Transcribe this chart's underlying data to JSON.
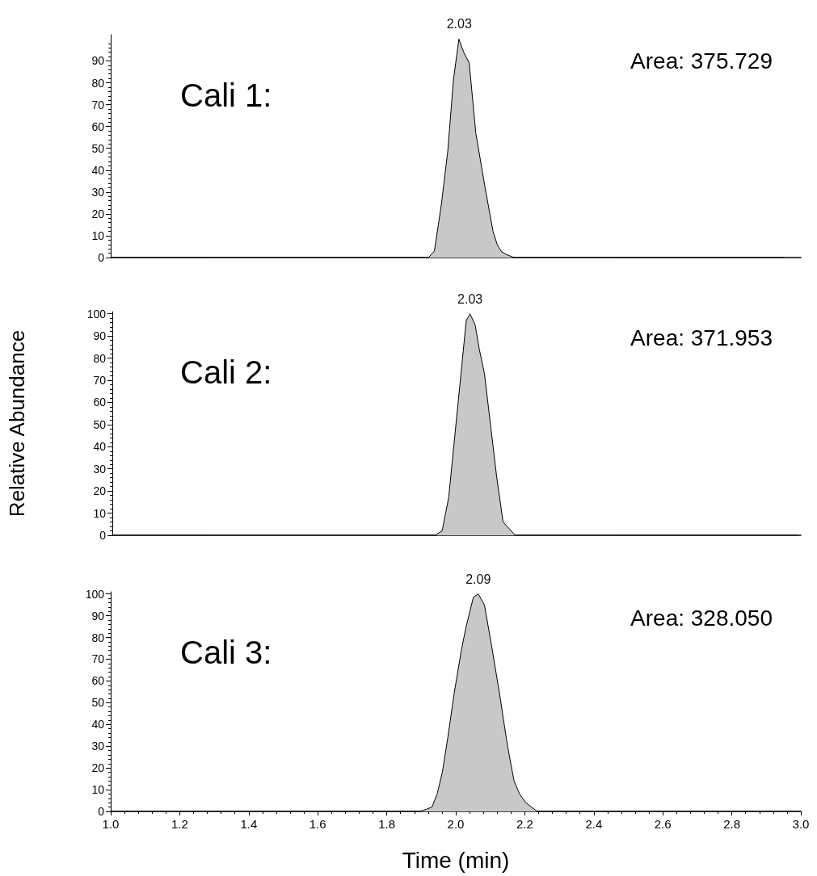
{
  "chart_data": [
    {
      "type": "area",
      "title": "Cali 1:",
      "annotations": [
        {
          "text": "2.03",
          "x": 2.01,
          "y": 100
        },
        "Area: 375.729"
      ],
      "xlim": [
        1,
        3
      ],
      "ylim": [
        0,
        102
      ],
      "yticks": [
        0,
        10,
        20,
        30,
        40,
        50,
        60,
        70,
        80,
        90
      ],
      "tick_labels": "y",
      "series": [
        {
          "color": "#c8c8c8",
          "x": [
            1.0,
            1.921,
            1.938,
            1.958,
            1.977,
            1.993,
            2.009,
            2.023,
            2.039,
            2.058,
            2.085,
            2.108,
            2.12,
            2.131,
            2.145,
            2.169,
            2.95
          ],
          "values": [
            0,
            0,
            3,
            24,
            49,
            81,
            100,
            94,
            89,
            57,
            32,
            12,
            6,
            3,
            1.5,
            0,
            0
          ]
        }
      ]
    },
    {
      "type": "area",
      "title": "Cali 2:",
      "ylabel": "Relative Abundance",
      "annotations": [
        {
          "text": "2.03",
          "x": 2.039,
          "y": 100
        },
        "Area: 371.953"
      ],
      "xlim": [
        1,
        3
      ],
      "ylim": [
        0,
        101
      ],
      "yticks": [
        0,
        10,
        20,
        30,
        40,
        50,
        60,
        70,
        80,
        90,
        100
      ],
      "tick_labels": "y",
      "series": [
        {
          "color": "#c8c8c8",
          "x": [
            1.0,
            1.938,
            1.958,
            1.977,
            2.0,
            2.016,
            2.028,
            2.039,
            2.054,
            2.066,
            2.081,
            2.1,
            2.116,
            2.135,
            2.147,
            2.17,
            2.99
          ],
          "values": [
            0,
            0,
            2,
            17,
            53,
            78,
            97,
            100,
            95,
            84,
            73,
            48,
            27,
            6,
            4,
            0,
            0
          ]
        }
      ]
    },
    {
      "type": "area",
      "title": "Cali 3:",
      "xlabel": "Time (min)",
      "annotations": [
        {
          "text": "2.09",
          "x": 2.065,
          "y": 100
        },
        "Area: 328.050"
      ],
      "xlim": [
        1,
        3
      ],
      "xticks": [
        {
          "value": 1,
          "label": "1.0"
        },
        {
          "value": 1.2,
          "label": "1.2"
        },
        {
          "value": 1.4,
          "label": "1.4"
        },
        {
          "value": 1.6,
          "label": "1.6"
        },
        {
          "value": 1.8,
          "label": "1.8"
        },
        {
          "value": 2,
          "label": "2.0"
        },
        {
          "value": 2.2,
          "label": "2.2"
        },
        {
          "value": 2.4,
          "label": "2.4"
        },
        {
          "value": 2.6,
          "label": "2.6"
        },
        {
          "value": 2.8,
          "label": "2.8"
        },
        {
          "value": 3,
          "label": "3.0"
        }
      ],
      "ylim": [
        0,
        101
      ],
      "yticks": [
        0,
        10,
        20,
        30,
        40,
        50,
        60,
        70,
        80,
        90,
        100
      ],
      "series": [
        {
          "color": "#c8c8c8",
          "x": [
            1.0,
            1.896,
            1.915,
            1.931,
            1.946,
            1.961,
            1.977,
            1.995,
            2.016,
            2.03,
            2.051,
            2.065,
            2.083,
            2.104,
            2.127,
            2.15,
            2.169,
            2.185,
            2.203,
            2.236,
            3.0
          ],
          "values": [
            0,
            0,
            1,
            2,
            8,
            18,
            34,
            54,
            74,
            85,
            98.5,
            100,
            95,
            76,
            54,
            30,
            14,
            8,
            4,
            0,
            0
          ]
        }
      ]
    }
  ]
}
